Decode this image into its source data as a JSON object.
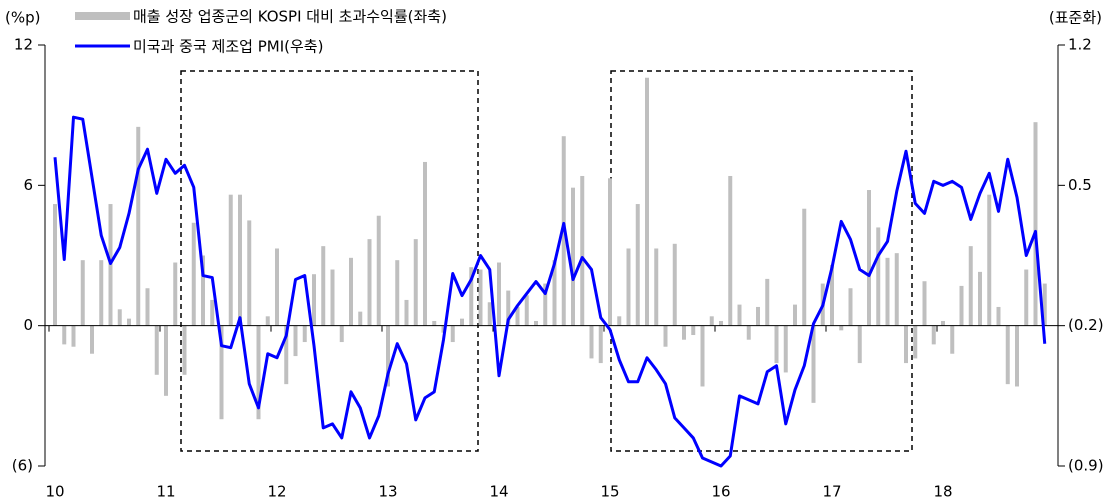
{
  "chart_data": {
    "type": "combo",
    "y_label": "(%p)",
    "y2_label": "(표준화)",
    "categories": [
      "10",
      null,
      null,
      null,
      null,
      null,
      null,
      null,
      null,
      null,
      null,
      null,
      "11",
      null,
      null,
      null,
      null,
      null,
      null,
      null,
      null,
      null,
      null,
      null,
      "12",
      null,
      null,
      null,
      null,
      null,
      null,
      null,
      null,
      null,
      null,
      null,
      "13",
      null,
      null,
      null,
      null,
      null,
      null,
      null,
      null,
      null,
      null,
      null,
      "14",
      null,
      null,
      null,
      null,
      null,
      null,
      null,
      null,
      null,
      null,
      null,
      "15",
      null,
      null,
      null,
      null,
      null,
      null,
      null,
      null,
      null,
      null,
      null,
      "16",
      null,
      null,
      null,
      null,
      null,
      null,
      null,
      null,
      null,
      null,
      null,
      "17",
      null,
      null,
      null,
      null,
      null,
      null,
      null,
      null,
      null,
      null,
      null,
      "18",
      null,
      null,
      null,
      null,
      null,
      null,
      null,
      null,
      null,
      null,
      null
    ],
    "series": [
      {
        "name": "매출 성장 업종군의 KOSPI 대비 초과수익률(좌축)",
        "type": "bar",
        "color": "#bfbfbf",
        "values": [
          5.2,
          -0.8,
          -0.9,
          2.8,
          -1.2,
          2.8,
          5.2,
          0.7,
          0.3,
          8.5,
          1.6,
          -2.1,
          -3.0,
          2.7,
          -2.1,
          4.4,
          3.0,
          1.1,
          -4.0,
          5.6,
          5.6,
          4.5,
          -4.0,
          0.4,
          3.3,
          -2.5,
          -1.3,
          -0.7,
          2.2,
          3.4,
          2.4,
          -0.7,
          2.9,
          0.6,
          3.7,
          4.7,
          -2.6,
          2.8,
          1.1,
          3.7,
          7.0,
          0.2,
          -0.3,
          -0.7,
          0.3,
          2.5,
          2.4,
          1.0,
          2.7,
          1.5,
          0.8,
          1.3,
          0.2,
          1.8,
          2.8,
          8.1,
          5.9,
          6.4,
          -1.4,
          -1.6,
          6.3,
          0.4,
          3.3,
          5.2,
          10.6,
          3.3,
          -0.9,
          3.5,
          -0.6,
          -0.4,
          -2.6,
          0.4,
          0.2,
          6.4,
          0.9,
          -0.6,
          0.8,
          2.0,
          -1.6,
          -2.0,
          0.9,
          5.0,
          -3.3,
          1.8,
          2.6,
          -0.2,
          1.6,
          -1.6,
          5.8,
          4.2,
          2.9,
          3.1,
          -1.6,
          -1.4,
          1.9,
          -0.8,
          0.2,
          -1.2,
          1.7,
          3.4,
          2.3,
          5.6,
          0.8,
          -2.5,
          -2.6,
          2.4,
          8.7,
          1.8
        ]
      },
      {
        "name": "미국과 중국 제조업 PMI(우축)",
        "type": "line",
        "axis": "y2",
        "color": "#0000ff",
        "values": [
          0.64,
          0.13,
          0.84,
          0.83,
          0.54,
          0.25,
          0.11,
          0.19,
          0.36,
          0.58,
          0.68,
          0.46,
          0.63,
          0.56,
          0.6,
          0.49,
          0.05,
          0.04,
          -0.3,
          -0.31,
          -0.16,
          -0.49,
          -0.61,
          -0.34,
          -0.36,
          -0.25,
          0.03,
          0.05,
          -0.3,
          -0.71,
          -0.69,
          -0.76,
          -0.53,
          -0.61,
          -0.76,
          -0.65,
          -0.44,
          -0.29,
          -0.39,
          -0.67,
          -0.56,
          -0.53,
          -0.27,
          0.06,
          -0.05,
          0.03,
          0.15,
          0.08,
          -0.45,
          -0.17,
          -0.1,
          -0.04,
          0.02,
          -0.04,
          0.11,
          0.31,
          0.03,
          0.14,
          0.08,
          -0.16,
          -0.22,
          -0.37,
          -0.48,
          -0.48,
          -0.36,
          -0.42,
          -0.49,
          -0.66,
          -0.71,
          -0.76,
          -0.86,
          -0.88,
          -0.9,
          -0.85,
          -0.55,
          -0.57,
          -0.59,
          -0.43,
          -0.4,
          -0.69,
          -0.52,
          -0.4,
          -0.19,
          -0.1,
          0.09,
          0.32,
          0.23,
          0.08,
          0.05,
          0.15,
          0.22,
          0.47,
          0.67,
          0.41,
          0.36,
          0.52,
          0.5,
          0.52,
          0.49,
          0.33,
          0.46,
          0.56,
          0.37,
          0.63,
          0.44,
          0.15,
          0.27,
          -0.29
        ]
      }
    ],
    "ylim": [
      -6,
      12
    ],
    "yticks": [
      {
        "value": -6,
        "label": "(6)"
      },
      0,
      6,
      12
    ],
    "y2lim": [
      -0.9,
      1.2
    ],
    "y2ticks": [
      {
        "value": -0.9,
        "label": "(0.9)"
      },
      {
        "value": -0.2,
        "label": "(0.2)"
      },
      0.5,
      1.2
    ]
  }
}
